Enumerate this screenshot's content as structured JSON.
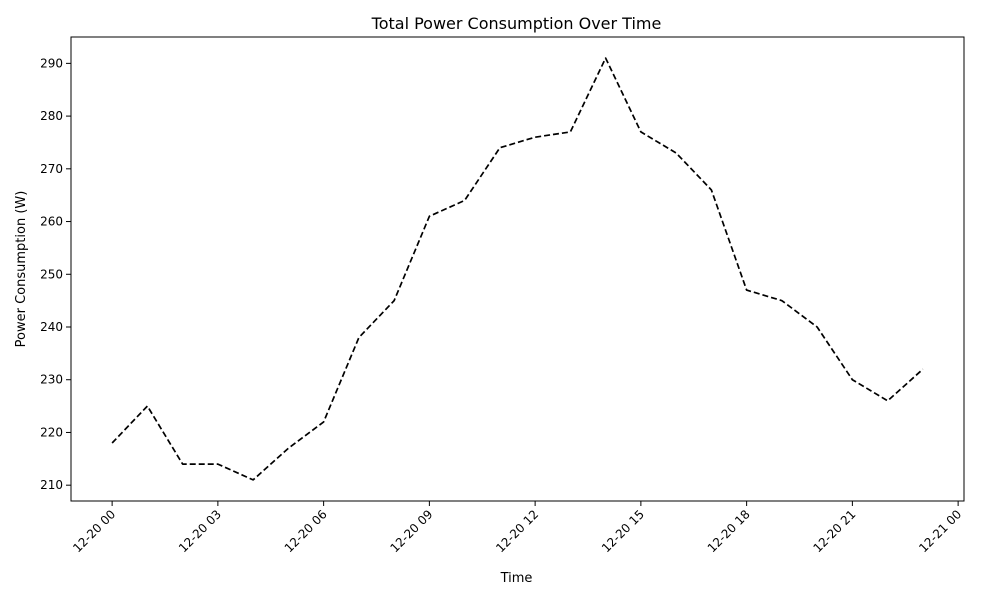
{
  "chart_data": {
    "type": "line",
    "title": "Total Power Consumption Over Time",
    "xlabel": "Time",
    "ylabel": "Power Consumption (W)",
    "x": [
      "12-20 00",
      "12-20 01",
      "12-20 02",
      "12-20 03",
      "12-20 04",
      "12-20 05",
      "12-20 06",
      "12-20 07",
      "12-20 08",
      "12-20 09",
      "12-20 10",
      "12-20 11",
      "12-20 12",
      "12-20 13",
      "12-20 14",
      "12-20 15",
      "12-20 16",
      "12-20 17",
      "12-20 18",
      "12-20 19",
      "12-20 20",
      "12-20 21",
      "12-20 22",
      "12-20 23"
    ],
    "series": [
      {
        "values": [
          218,
          225,
          214,
          214,
          211,
          217,
          222,
          238,
          245,
          261,
          264,
          274,
          276,
          277,
          291,
          277,
          273,
          266,
          247,
          245,
          240,
          230,
          226,
          232
        ],
        "color": "#000000",
        "linestyle": "dashed"
      }
    ],
    "xticks": [
      "12-20 00",
      "12-20 03",
      "12-20 06",
      "12-20 09",
      "12-20 12",
      "12-20 15",
      "12-20 18",
      "12-20 21",
      "12-21 00"
    ],
    "xlim": [
      "12-19 22:50",
      "12-21 00:10"
    ],
    "ylim": [
      207,
      295
    ],
    "yticks": [
      210,
      220,
      230,
      240,
      250,
      260,
      270,
      280,
      290
    ],
    "grid": false,
    "legend": "none"
  }
}
